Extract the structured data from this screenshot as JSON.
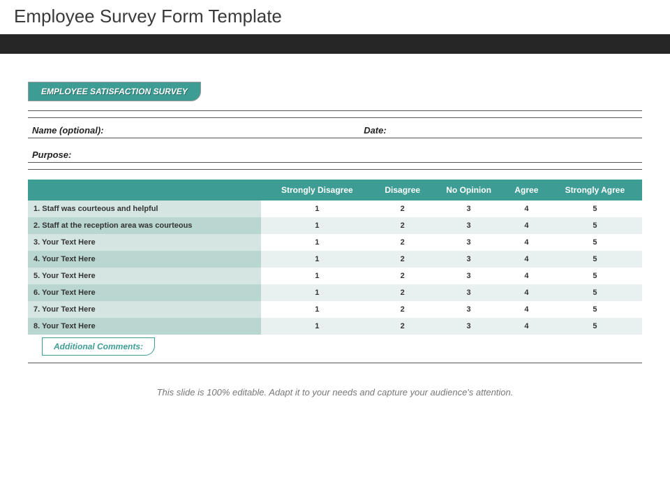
{
  "title": "Employee Survey Form Template",
  "header_tab": "EMPLOYEE SATISFACTION SURVEY",
  "fields": {
    "name_label": "Name (optional):",
    "date_label": "Date:",
    "purpose_label": "Purpose:"
  },
  "table": {
    "columns": [
      "Strongly Disagree",
      "Disagree",
      "No Opinion",
      "Agree",
      "Strongly Agree"
    ],
    "scale": [
      "1",
      "2",
      "3",
      "4",
      "5"
    ],
    "header_bg": "#3d9c94",
    "header_color": "#ffffff",
    "row_alt_bg_light": "#ffffff",
    "row_alt_bg_dark": "#e8f1ef",
    "qcell_bg_light": "#d5e6e2",
    "qcell_bg_dark": "#b9d6d0",
    "questions": [
      "1. Staff was courteous and helpful",
      "2. Staff at the reception area was courteous",
      "3. Your Text Here",
      "4. Your Text Here",
      "5. Your Text Here",
      "6. Your Text Here",
      "7. Your Text Here",
      "8. Your Text Here"
    ]
  },
  "comments_tab": "Additional Comments:",
  "footer": "This slide is 100% editable. Adapt it to your needs and capture your audience's attention.",
  "colors": {
    "accent": "#3d9c94",
    "dark_strip": "#262626",
    "rule": "#555555",
    "text": "#3a3a3a"
  }
}
